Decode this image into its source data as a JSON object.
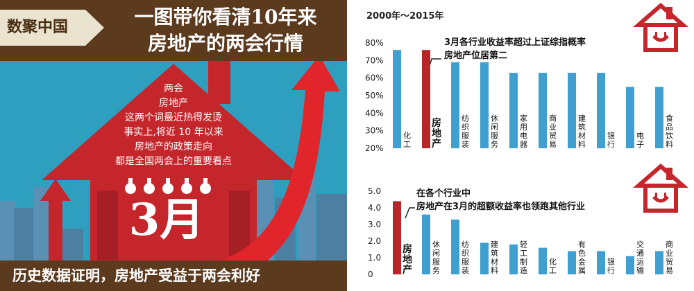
{
  "left_panel": {
    "tag": "数聚中国",
    "title_line1": "一图带你看清10年来",
    "title_line2": "房地产的两会行情",
    "house_lines": [
      "两会",
      "房地产",
      "这两个词最近热得发烫",
      "事实上,将近 10 年以来",
      "房地产的政策走向",
      "都是全国两会上的重要看点"
    ],
    "month": "3月",
    "footer": "历史数据证明，房地产受益于两会利好"
  },
  "right_panel": {
    "period": "2000年～2015年",
    "top_annotation_line1": "3月各行业收益率超过上证综指概率",
    "top_annotation_line2": "房地产位居第二",
    "bottom_annotation_line1": "在各个行业中",
    "bottom_annotation_line2": "房地产在3月的超额收益率也领跑其他行业"
  },
  "colors": {
    "brown": "#5b3a1e",
    "red": "#b8262a",
    "blue": "#3f9fd0",
    "sky": "#2f9fbf"
  },
  "chart_data": [
    {
      "type": "bar",
      "categories": [
        "化工",
        "房地产",
        "纺织服装",
        "休闲服务",
        "家用电器",
        "商业贸易",
        "建筑材料",
        "银行",
        "电子",
        "食品饮料"
      ],
      "values": [
        76,
        76,
        69,
        69,
        63,
        63,
        63,
        63,
        55,
        55
      ],
      "highlight": "房地产",
      "yticks": [
        "80%",
        "70%",
        "60%",
        "50%",
        "40%",
        "30%",
        "20%"
      ],
      "ylim": [
        20,
        80
      ]
    },
    {
      "type": "bar",
      "categories": [
        "房地产",
        "休闲服务",
        "纺织服装",
        "建筑材料",
        "轻工制造",
        "化工",
        "有色金属",
        "银行",
        "交通运输",
        "商业贸易"
      ],
      "values": [
        4.4,
        3.6,
        3.3,
        1.9,
        1.8,
        1.6,
        1.4,
        1.4,
        1.1,
        1.4
      ],
      "highlight": "房地产",
      "yticks": [
        "5.0",
        "4.0",
        "3.0",
        "2.0",
        "1.0",
        "0"
      ],
      "ylim": [
        0,
        5
      ]
    }
  ]
}
